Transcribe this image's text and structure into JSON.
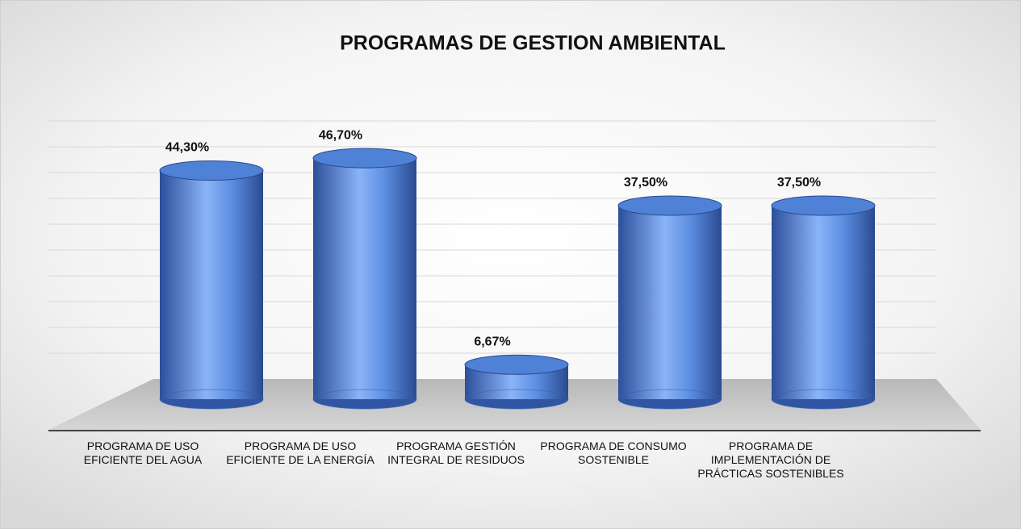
{
  "chart_data": {
    "type": "bar",
    "title": "PROGRAMAS DE GESTION AMBIENTAL",
    "categories": [
      "PROGRAMA DE USO EFICIENTE DEL AGUA",
      "PROGRAMA DE USO EFICIENTE DE LA ENERGÍA",
      "PROGRAMA GESTIÓN INTEGRAL DE RESIDUOS",
      "PROGRAMA DE CONSUMO SOSTENIBLE",
      "PROGRAMA DE IMPLEMENTACIÓN DE PRÁCTICAS SOSTENIBLES"
    ],
    "values": [
      44.3,
      46.7,
      6.67,
      37.5,
      37.5
    ],
    "value_labels": [
      "44,30%",
      "46,70%",
      "6,67%",
      "37,50%",
      "37,50%"
    ],
    "color": "#4f81d6",
    "ylim": [
      0,
      50
    ],
    "yticks": [
      0,
      5,
      10,
      15,
      20,
      25,
      30,
      35,
      40,
      45,
      50
    ],
    "grid": true
  }
}
